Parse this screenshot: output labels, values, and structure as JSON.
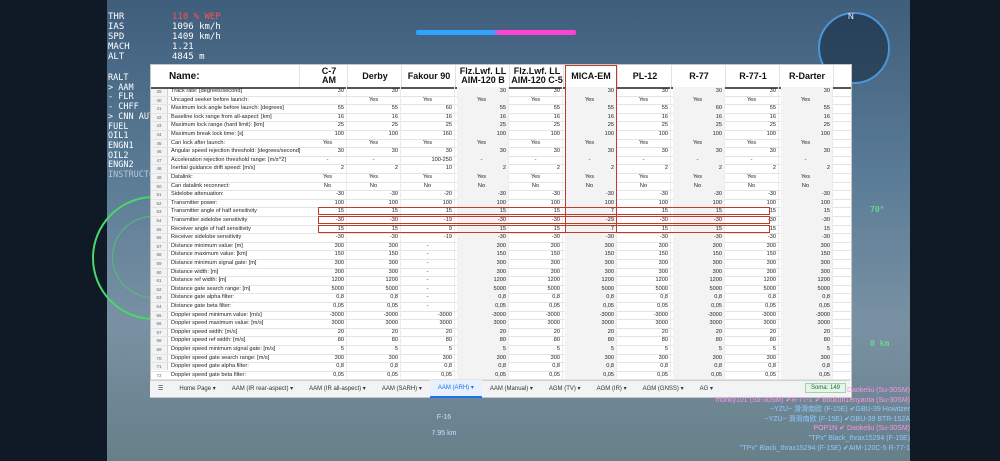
{
  "hud": {
    "labels": [
      "THR",
      "IAS",
      "SPD",
      "MACH",
      "ALT"
    ],
    "values": [
      "110 % WEP",
      "1096 km/h",
      "1409 km/h",
      "1.21",
      "4845 m"
    ],
    "menu": [
      "RALT",
      "> AAM",
      "- FLR",
      "- CHFF",
      "> CNN AUTO",
      "FUEL",
      "",
      "OIL1",
      "ENGN1",
      "OIL2",
      "ENGN2",
      "INSTRUCTO"
    ]
  },
  "compass_n": "N",
  "right_hud": {
    "angle": "70°",
    "range": "0 km"
  },
  "target": {
    "name": "F-16",
    "range": "7.95 km"
  },
  "sheet": {
    "name_header": "Name:",
    "columns": [
      "C-7\nAM",
      "Derby",
      "Fakour 90",
      "Flz.Lwf. LL\nAIM-120 B",
      "Flz.Lwf. LL\nAIM-120 C-5",
      "MICA-EM",
      "PL-12",
      "R-77",
      "R-77-1",
      "R-Darter"
    ],
    "rows": [
      {
        "n": "39",
        "label": "Track rate: [degrees/second]",
        "v": [
          "30",
          "30",
          "",
          "30",
          "30",
          "30",
          "30",
          "30",
          "30",
          "30"
        ]
      },
      {
        "n": "40",
        "label": "Uncaged seeker before launch:",
        "v": [
          "",
          "Yes",
          "Yes",
          "Yes",
          "Yes",
          "Yes",
          "Yes",
          "Yes",
          "Yes",
          "Yes"
        ]
      },
      {
        "n": "41",
        "label": "Maximum lock angle before launch: [degrees]",
        "v": [
          "55",
          "55",
          "60",
          "55",
          "55",
          "55",
          "55",
          "60",
          "55",
          "55"
        ]
      },
      {
        "n": "42",
        "label": "Baseline lock range from all-aspect: [km]",
        "v": [
          "16",
          "16",
          "16",
          "16",
          "16",
          "16",
          "16",
          "16",
          "16",
          "16"
        ]
      },
      {
        "n": "43",
        "label": "Maximum lock range (hard limit): [km]",
        "v": [
          "25",
          "25",
          "25",
          "25",
          "25",
          "25",
          "25",
          "25",
          "25",
          "25"
        ]
      },
      {
        "n": "44",
        "label": "Maximum break lock time: [s]",
        "v": [
          "100",
          "100",
          "160",
          "100",
          "100",
          "100",
          "100",
          "100",
          "100",
          "100"
        ]
      },
      {
        "n": "45",
        "label": "Can lock after launch:",
        "v": [
          "Yes",
          "Yes",
          "Yes",
          "Yes",
          "Yes",
          "Yes",
          "Yes",
          "Yes",
          "Yes",
          "Yes"
        ]
      },
      {
        "n": "46",
        "label": "Angular speed rejection threshold: [degrees/second]",
        "v": [
          "30",
          "30",
          "30",
          "30",
          "30",
          "30",
          "30",
          "30",
          "30",
          "30"
        ]
      },
      {
        "n": "47",
        "label": "Acceleration rejection threshold range: [m/s^2]",
        "v": [
          "-",
          "-",
          "100-250",
          "-",
          "-",
          "-",
          "-",
          "-",
          "-",
          "-"
        ]
      },
      {
        "n": "48",
        "label": "Inertial guidance drift speed: [m/s]",
        "v": [
          "2",
          "2",
          "10",
          "2",
          "2",
          "2",
          "2",
          "2",
          "2",
          "2"
        ]
      },
      {
        "n": "49",
        "label": "Datalink:",
        "v": [
          "Yes",
          "Yes",
          "Yes",
          "Yes",
          "Yes",
          "Yes",
          "Yes",
          "Yes",
          "Yes",
          "Yes"
        ]
      },
      {
        "n": "50",
        "label": "Can datalink reconnect:",
        "v": [
          "No",
          "No",
          "No",
          "No",
          "No",
          "No",
          "No",
          "No",
          "No",
          "No"
        ]
      },
      {
        "n": "51",
        "label": "Sidelobe attenuation:",
        "v": [
          "-30",
          "-30",
          "-20",
          "-30",
          "-30",
          "-30",
          "-30",
          "-30",
          "-30",
          "-30"
        ]
      },
      {
        "n": "52",
        "label": "Transmitter power:",
        "v": [
          "100",
          "100",
          "100",
          "100",
          "100",
          "100",
          "100",
          "100",
          "100",
          "100"
        ]
      },
      {
        "n": "53",
        "label": "Transmitter angle of half sensitivity",
        "v": [
          "15",
          "15",
          "15",
          "15",
          "15",
          "7",
          "15",
          "15",
          "15",
          "15"
        ]
      },
      {
        "n": "54",
        "label": "Transmitter sidelobe sensitivity",
        "v": [
          "-30",
          "-30",
          "-19",
          "-30",
          "-30",
          "-29",
          "-30",
          "-30",
          "-30",
          "-30"
        ]
      },
      {
        "n": "55",
        "label": "Receiver angle of half sensitivity",
        "v": [
          "15",
          "15",
          "9",
          "15",
          "15",
          "7",
          "15",
          "15",
          "15",
          "15"
        ]
      },
      {
        "n": "56",
        "label": "Receiver sidelobe sensitivity",
        "v": [
          "-30",
          "-30",
          "-19",
          "-30",
          "-30",
          "-30",
          "-30",
          "-30",
          "-30",
          "-30"
        ]
      },
      {
        "n": "57",
        "label": "Distance minimum value: [m]",
        "v": [
          "300",
          "300",
          "-",
          "300",
          "300",
          "300",
          "300",
          "300",
          "300",
          "300"
        ]
      },
      {
        "n": "58",
        "label": "Distance maximum value: [km]",
        "v": [
          "150",
          "150",
          "-",
          "150",
          "150",
          "150",
          "150",
          "150",
          "150",
          "150"
        ]
      },
      {
        "n": "59",
        "label": "Distance minimum signal gate: [m]",
        "v": [
          "300",
          "300",
          "-",
          "300",
          "300",
          "300",
          "300",
          "300",
          "300",
          "300"
        ]
      },
      {
        "n": "60",
        "label": "Distance width: [m]",
        "v": [
          "300",
          "300",
          "-",
          "300",
          "300",
          "300",
          "300",
          "300",
          "300",
          "300"
        ]
      },
      {
        "n": "61",
        "label": "Distance ref width: [m]",
        "v": [
          "1200",
          "1200",
          "-",
          "1200",
          "1200",
          "1200",
          "1200",
          "1200",
          "1200",
          "1200"
        ]
      },
      {
        "n": "62",
        "label": "Distance gate search range: [m]",
        "v": [
          "5000",
          "5000",
          "-",
          "5000",
          "5000",
          "5000",
          "5000",
          "5000",
          "5000",
          "5000"
        ]
      },
      {
        "n": "63",
        "label": "Distance gate alpha filter:",
        "v": [
          "0,8",
          "0,8",
          "-",
          "0,8",
          "0,8",
          "0,8",
          "0,8",
          "0,8",
          "0,8",
          "0,8"
        ]
      },
      {
        "n": "64",
        "label": "Distance gate beta filter:",
        "v": [
          "0,05",
          "0,05",
          "-",
          "0,05",
          "0,05",
          "0,05",
          "0,05",
          "0,05",
          "0,05",
          "0,05"
        ]
      },
      {
        "n": "65",
        "label": "Doppler speed minimum value: [m/s]",
        "v": [
          "-3000",
          "-3000",
          "-3000",
          "-3000",
          "-3000",
          "-3000",
          "-3000",
          "-3000",
          "-3000",
          "-3000"
        ]
      },
      {
        "n": "66",
        "label": "Doppler speed maximum value: [m/s]",
        "v": [
          "3000",
          "3000",
          "3000",
          "3000",
          "3000",
          "3000",
          "3000",
          "3000",
          "3000",
          "3000"
        ]
      },
      {
        "n": "67",
        "label": "Doppler speed width: [m/s]",
        "v": [
          "20",
          "20",
          "20",
          "20",
          "20",
          "20",
          "20",
          "20",
          "20",
          "20"
        ]
      },
      {
        "n": "68",
        "label": "Doppler speed ref width: [m/s]",
        "v": [
          "80",
          "80",
          "80",
          "80",
          "80",
          "80",
          "80",
          "80",
          "80",
          "80"
        ]
      },
      {
        "n": "69",
        "label": "Doppler speed minimum signal gate: [m/s]",
        "v": [
          "5",
          "5",
          "5",
          "5",
          "5",
          "5",
          "5",
          "5",
          "5",
          "5"
        ]
      },
      {
        "n": "70",
        "label": "Doppler speed gate search range: [m/s]",
        "v": [
          "300",
          "300",
          "300",
          "300",
          "300",
          "300",
          "300",
          "300",
          "300",
          "300"
        ]
      },
      {
        "n": "71",
        "label": "Doppler speed gate alpha filter:",
        "v": [
          "0,8",
          "0,8",
          "0,8",
          "0,8",
          "0,8",
          "0,8",
          "0,8",
          "0,8",
          "0,8",
          "0,8"
        ]
      },
      {
        "n": "72",
        "label": "Doppler speed gate beta filter:",
        "v": [
          "0,05",
          "0,05",
          "0,05",
          "0,05",
          "0,05",
          "0,05",
          "0,05",
          "0,05",
          "0,05",
          "0,05"
        ]
      }
    ],
    "tabs": [
      "Home Page",
      "AAM (IR rear-aspect)",
      "AAM (IR all-aspect)",
      "AAM (SARH)",
      "AAM (ARH)",
      "AAM (Manual)",
      "AGM (TV)",
      "AGM (IR)",
      "AGM (GNSS)",
      "AG"
    ],
    "active_tab": "AAM (ARH)",
    "sum_label": "Soma: 149"
  },
  "killfeed": [
    {
      "text": "Daokeliu (Su-30SM)",
      "color": "pink"
    },
    {
      "text": "monky101 (Su-30SM) ✔R-77-1 ✔ boukun1enyanta (Su-30SM)",
      "color": "pink"
    },
    {
      "text": "~YZU~ 滑滑南欧 (F-15E) ✔GBU-39 Howitzer",
      "color": "blue"
    },
    {
      "text": "~YZU~ 滑滑南欧 (F-15E) ✔GBU-39 BTR-152A",
      "color": "blue"
    },
    {
      "text": "POP1N ✔ Daokeliu (Su-30SM)",
      "color": "pink"
    },
    {
      "text": "\"TPx\" Black_thrax15294 (F-15E)",
      "color": "blue"
    },
    {
      "text": "\"TPx\" Black_thrax15294 (F-15E) ✔AIM-120C-5 R-77-1",
      "color": "blue"
    }
  ]
}
